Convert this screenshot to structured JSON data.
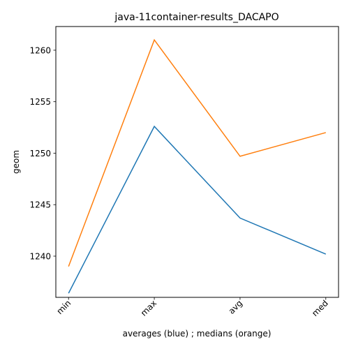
{
  "chart_data": {
    "type": "line",
    "title": "java-11container-results_DACAPO",
    "xlabel": "averages (blue) ; medians (orange)",
    "ylabel": "geom",
    "categories": [
      "min",
      "max",
      "avg",
      "med"
    ],
    "ylim": [
      1236,
      1262.3
    ],
    "yticks": [
      1240,
      1245,
      1250,
      1255,
      1260
    ],
    "grid": false,
    "series": [
      {
        "color": "#1f77b4",
        "values": [
          1236.4,
          1252.6,
          1243.7,
          1240.2
        ]
      },
      {
        "color": "#ff7f0e",
        "values": [
          1239.0,
          1261.0,
          1249.7,
          1252.0
        ]
      }
    ]
  }
}
